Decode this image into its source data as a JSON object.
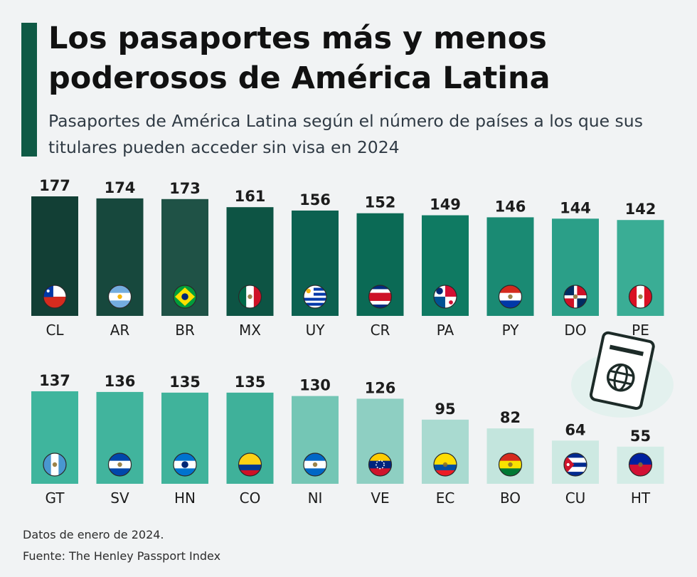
{
  "title": "Los pasaportes más y menos poderosos de América Latina",
  "subtitle": "Pasaportes de América Latina según el número de países a los que sus titulares pueden acceder sin visa en 2024",
  "note": "Datos de enero de 2024.",
  "source": "Fuente: The Henley Passport Index",
  "icons": {
    "passport": "passport-globe-icon"
  },
  "colors": {
    "accent": "#0f5a45",
    "dark": "#0f3d34",
    "mid": "#108068",
    "light": "#3cb39c",
    "pale": "#b9e1d9"
  },
  "chart_data": [
    {
      "type": "bar",
      "categories": [
        "CL",
        "AR",
        "BR",
        "MX",
        "UY",
        "CR",
        "PA",
        "PY",
        "DO",
        "PE"
      ],
      "values": [
        177,
        174,
        173,
        161,
        156,
        152,
        149,
        146,
        144,
        142
      ],
      "bar_colors": [
        "#123f35",
        "#17483d",
        "#1f5246",
        "#0d5444",
        "#0c6150",
        "#0b6a55",
        "#0f7a62",
        "#1a8a73",
        "#2b9f88",
        "#3aad95"
      ],
      "flags": [
        "cl",
        "ar",
        "br",
        "mx",
        "uy",
        "cr",
        "pa",
        "py",
        "do",
        "pe"
      ],
      "ylim": [
        0,
        177
      ]
    },
    {
      "type": "bar",
      "categories": [
        "GT",
        "SV",
        "HN",
        "CO",
        "NI",
        "VE",
        "EC",
        "BO",
        "CU",
        "HT"
      ],
      "values": [
        137,
        136,
        135,
        135,
        130,
        126,
        95,
        82,
        64,
        55
      ],
      "bar_colors": [
        "#3fb59d",
        "#41b49d",
        "#40b39b",
        "#3fb19a",
        "#74c6b5",
        "#8ecfc2",
        "#a9dad0",
        "#c3e5dd",
        "#cde9e2",
        "#d4ece6"
      ],
      "flags": [
        "gt",
        "sv",
        "hn",
        "co",
        "ni",
        "ve",
        "ec",
        "bo",
        "cu",
        "ht"
      ],
      "ylim": [
        0,
        177
      ]
    }
  ]
}
